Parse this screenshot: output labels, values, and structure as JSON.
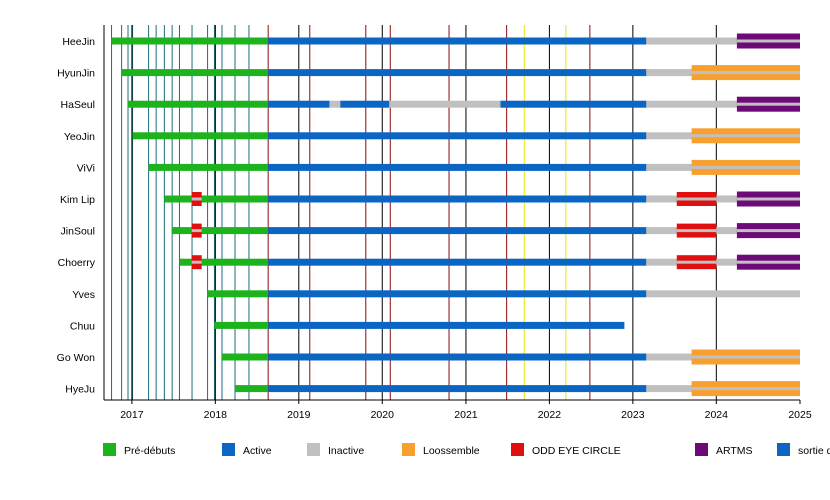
{
  "chart_data": {
    "type": "timeline",
    "title": "",
    "xlabel": "",
    "ylabel": "",
    "x_range": [
      "2016-09-01",
      "2025-01-01"
    ],
    "x_ticks": [
      "2017",
      "2018",
      "2019",
      "2020",
      "2021",
      "2022",
      "2023",
      "2024",
      "2025"
    ],
    "colors": {
      "Pré-débuts": "#1db31d",
      "Active": "#0a66c2",
      "Inactive": "#c0c0c0",
      "Loossemble": "#f7a030",
      "ODD EYE CIRCLE": "#e01010",
      "ARTMS": "#6e0a78",
      "sortie d'album": "#0a66c2",
      "album_line": "#8b0a0a",
      "single_line": "#e8e800",
      "year_line": "#000000",
      "predebut_line": "#1a6e7a"
    },
    "legend": {
      "placement": "bottom",
      "items": [
        {
          "label": "Pré-débuts",
          "color": "#1db31d"
        },
        {
          "label": "Active",
          "color": "#0a66c2"
        },
        {
          "label": "Inactive",
          "color": "#c0c0c0"
        },
        {
          "label": "Loossemble",
          "color": "#f7a030"
        },
        {
          "label": "ODD EYE CIRCLE",
          "color": "#e01010"
        },
        {
          "label": "ARTMS",
          "color": "#6e0a78"
        },
        {
          "label": "sortie d'album",
          "color": "#0a66c2"
        }
      ]
    },
    "members": [
      {
        "name": "HeeJin",
        "segments": [
          {
            "status": "Pré-débuts",
            "start": "2016-10-04",
            "end": "2018-08-20"
          },
          {
            "status": "Active",
            "start": "2018-08-20",
            "end": "2023-03-01"
          },
          {
            "status": "Inactive",
            "start": "2023-03-01",
            "end": "2025-01-01"
          },
          {
            "status": "ARTMS",
            "start": "2024-03-31",
            "end": "2025-01-01"
          }
        ]
      },
      {
        "name": "HyunJin",
        "segments": [
          {
            "status": "Pré-débuts",
            "start": "2016-11-17",
            "end": "2018-08-20"
          },
          {
            "status": "Active",
            "start": "2018-08-20",
            "end": "2023-03-01"
          },
          {
            "status": "Inactive",
            "start": "2023-03-01",
            "end": "2025-01-01"
          },
          {
            "status": "Loossemble",
            "start": "2023-09-15",
            "end": "2025-01-01"
          }
        ]
      },
      {
        "name": "HaSeul",
        "segments": [
          {
            "status": "Pré-débuts",
            "start": "2016-12-15",
            "end": "2018-08-20"
          },
          {
            "status": "Active",
            "start": "2018-08-20",
            "end": "2019-05-15"
          },
          {
            "status": "Inactive",
            "start": "2019-05-15",
            "end": "2019-07-01"
          },
          {
            "status": "Active",
            "start": "2019-07-01",
            "end": "2020-02-01"
          },
          {
            "status": "Inactive",
            "start": "2020-02-01",
            "end": "2021-06-01"
          },
          {
            "status": "Active",
            "start": "2021-06-01",
            "end": "2023-03-01"
          },
          {
            "status": "Inactive",
            "start": "2023-03-01",
            "end": "2025-01-01"
          },
          {
            "status": "ARTMS",
            "start": "2024-03-31",
            "end": "2025-01-01"
          }
        ]
      },
      {
        "name": "YeoJin",
        "segments": [
          {
            "status": "Pré-débuts",
            "start": "2017-01-04",
            "end": "2018-08-20"
          },
          {
            "status": "Active",
            "start": "2018-08-20",
            "end": "2023-03-01"
          },
          {
            "status": "Inactive",
            "start": "2023-03-01",
            "end": "2025-01-01"
          },
          {
            "status": "Loossemble",
            "start": "2023-09-15",
            "end": "2025-01-01"
          }
        ]
      },
      {
        "name": "ViVi",
        "segments": [
          {
            "status": "Pré-débuts",
            "start": "2017-03-15",
            "end": "2018-08-20"
          },
          {
            "status": "Active",
            "start": "2018-08-20",
            "end": "2023-03-01"
          },
          {
            "status": "Inactive",
            "start": "2023-03-01",
            "end": "2025-01-01"
          },
          {
            "status": "Loossemble",
            "start": "2023-09-15",
            "end": "2025-01-01"
          }
        ]
      },
      {
        "name": "Kim Lip",
        "segments": [
          {
            "status": "Pré-débuts",
            "start": "2017-05-23",
            "end": "2018-08-20"
          },
          {
            "status": "Active",
            "start": "2018-08-20",
            "end": "2023-03-01"
          },
          {
            "status": "Inactive",
            "start": "2023-03-01",
            "end": "2025-01-01"
          },
          {
            "status": "ODD EYE CIRCLE",
            "start": "2017-09-21",
            "end": "2017-11-01"
          },
          {
            "status": "ODD EYE CIRCLE",
            "start": "2023-07-12",
            "end": "2024-01-01"
          },
          {
            "status": "ARTMS",
            "start": "2024-03-31",
            "end": "2025-01-01"
          }
        ]
      },
      {
        "name": "JinSoul",
        "segments": [
          {
            "status": "Pré-débuts",
            "start": "2017-06-26",
            "end": "2018-08-20"
          },
          {
            "status": "Active",
            "start": "2018-08-20",
            "end": "2023-03-01"
          },
          {
            "status": "Inactive",
            "start": "2023-03-01",
            "end": "2025-01-01"
          },
          {
            "status": "ODD EYE CIRCLE",
            "start": "2017-09-21",
            "end": "2017-11-01"
          },
          {
            "status": "ODD EYE CIRCLE",
            "start": "2023-07-12",
            "end": "2024-01-01"
          },
          {
            "status": "ARTMS",
            "start": "2024-03-31",
            "end": "2025-01-01"
          }
        ]
      },
      {
        "name": "Choerry",
        "segments": [
          {
            "status": "Pré-débuts",
            "start": "2017-07-28",
            "end": "2018-08-20"
          },
          {
            "status": "Active",
            "start": "2018-08-20",
            "end": "2023-03-01"
          },
          {
            "status": "Inactive",
            "start": "2023-03-01",
            "end": "2025-01-01"
          },
          {
            "status": "ODD EYE CIRCLE",
            "start": "2017-09-21",
            "end": "2017-11-01"
          },
          {
            "status": "ODD EYE CIRCLE",
            "start": "2023-07-12",
            "end": "2024-01-01"
          },
          {
            "status": "ARTMS",
            "start": "2024-03-31",
            "end": "2025-01-01"
          }
        ]
      },
      {
        "name": "Yves",
        "segments": [
          {
            "status": "Pré-débuts",
            "start": "2017-11-28",
            "end": "2018-08-20"
          },
          {
            "status": "Active",
            "start": "2018-08-20",
            "end": "2023-03-01"
          },
          {
            "status": "Inactive",
            "start": "2023-03-01",
            "end": "2025-01-01"
          }
        ]
      },
      {
        "name": "Chuu",
        "segments": [
          {
            "status": "Pré-débuts",
            "start": "2017-12-28",
            "end": "2018-08-20"
          },
          {
            "status": "Active",
            "start": "2018-08-20",
            "end": "2022-11-25"
          }
        ]
      },
      {
        "name": "Go Won",
        "segments": [
          {
            "status": "Pré-débuts",
            "start": "2018-01-30",
            "end": "2018-08-20"
          },
          {
            "status": "Active",
            "start": "2018-08-20",
            "end": "2023-03-01"
          },
          {
            "status": "Inactive",
            "start": "2023-03-01",
            "end": "2025-01-01"
          },
          {
            "status": "Loossemble",
            "start": "2023-09-15",
            "end": "2025-01-01"
          }
        ]
      },
      {
        "name": "HyeJu",
        "segments": [
          {
            "status": "Pré-débuts",
            "start": "2018-03-28",
            "end": "2018-08-20"
          },
          {
            "status": "Active",
            "start": "2018-08-20",
            "end": "2023-03-01"
          },
          {
            "status": "Inactive",
            "start": "2023-03-01",
            "end": "2025-01-01"
          },
          {
            "status": "Loossemble",
            "start": "2023-09-15",
            "end": "2025-01-01"
          }
        ]
      }
    ],
    "predebut_release_lines": [
      "2016-10-04",
      "2016-11-17",
      "2016-12-15",
      "2017-01-04",
      "2017-03-15",
      "2017-04-17",
      "2017-05-23",
      "2017-06-26",
      "2017-07-28",
      "2017-09-21",
      "2017-11-28",
      "2017-12-28",
      "2018-01-30",
      "2018-03-28",
      "2018-05-28"
    ],
    "album_release_lines": [
      "2018-08-20",
      "2019-02-18",
      "2019-10-21",
      "2020-02-05",
      "2020-10-19",
      "2021-06-28",
      "2022-06-27"
    ],
    "single_release_lines": [
      "2021-09-13",
      "2022-03-14"
    ]
  }
}
